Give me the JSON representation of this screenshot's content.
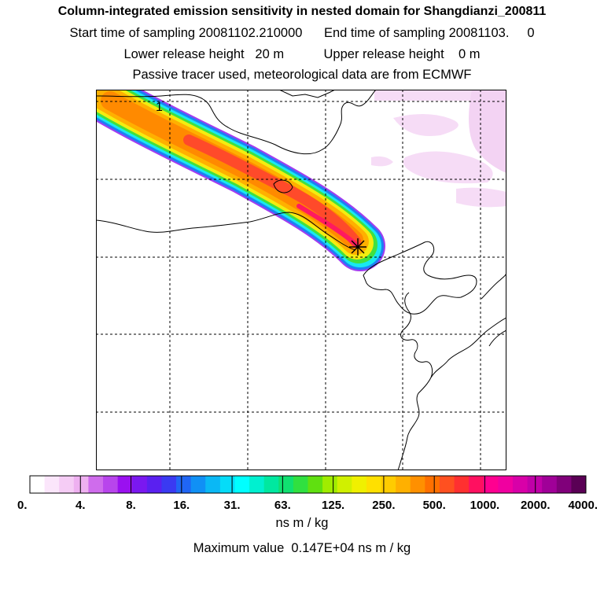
{
  "header": {
    "title": "Column-integrated emission sensitivity in nested domain for Shangdianzi_200811",
    "line2": "Start time of sampling 20081102.210000      End time of sampling 20081103.     0",
    "line3": "Lower release height   20 m           Upper release height    0 m",
    "line4": "Passive tracer used, meteorological data are from ECMWF"
  },
  "chart_data": {
    "type": "heatmap",
    "title": "Column-integrated emission sensitivity in nested domain for Shangdianzi_200811",
    "plume_label": "1",
    "release_site": "Shangdianzi",
    "colorbar": {
      "tick_labels": [
        "0.",
        "4.",
        "8.",
        "16.",
        "31.",
        "63.",
        "125.",
        "250.",
        "500.",
        "1000.",
        "2000.",
        "4000."
      ],
      "tick_values": [
        0,
        4,
        8,
        16,
        31,
        63,
        125,
        250,
        500,
        1000,
        2000,
        4000
      ],
      "colors": [
        "#ffffff",
        "#fbe6fb",
        "#f5ccf5",
        "#eeb0f0",
        "#cf6cec",
        "#b845ec",
        "#9a10f0",
        "#7a18f0",
        "#5a20f0",
        "#3a3af2",
        "#2066f5",
        "#1090f5",
        "#0ab8f5",
        "#05dcf8",
        "#00ffff",
        "#00f0d0",
        "#00e8a0",
        "#10e070",
        "#30e040",
        "#60e010",
        "#a0ec00",
        "#d0f000",
        "#f0f000",
        "#ffe000",
        "#ffcc00",
        "#ffb000",
        "#ff9000",
        "#ff7000",
        "#ff5020",
        "#ff3030",
        "#ff1060",
        "#ff0090",
        "#f000a0",
        "#d800a8",
        "#c000a8",
        "#a00098",
        "#80007a",
        "#5a0055"
      ],
      "units": "ns m / kg"
    },
    "maximum_value_text": "Maximum value  0.147E+04 ns m / kg",
    "maximum_value": 1470
  }
}
